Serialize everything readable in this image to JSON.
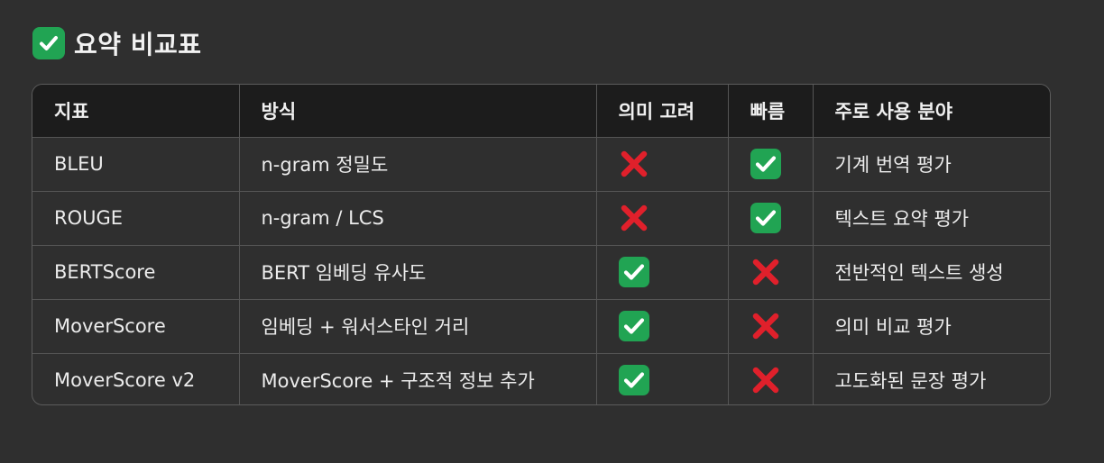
{
  "heading": {
    "icon": "check-mark-button-icon",
    "title": "요약 비교표"
  },
  "colors": {
    "background": "#2f2f2f",
    "header_bg": "#1c1c1c",
    "check_green": "#21a453",
    "cross_red": "#e0202b"
  },
  "table": {
    "headers": [
      "지표",
      "방식",
      "의미 고려",
      "빠름",
      "주로 사용 분야"
    ],
    "rows": [
      {
        "metric": "BLEU",
        "method": "n-gram 정밀도",
        "semantic": "cross-mark-icon",
        "fast": "check-mark-button-icon",
        "usage": "기계 번역 평가"
      },
      {
        "metric": "ROUGE",
        "method": "n-gram / LCS",
        "semantic": "cross-mark-icon",
        "fast": "check-mark-button-icon",
        "usage": "텍스트 요약 평가"
      },
      {
        "metric": "BERTScore",
        "method": "BERT 임베딩 유사도",
        "semantic": "check-mark-button-icon",
        "fast": "cross-mark-icon",
        "usage": "전반적인 텍스트 생성"
      },
      {
        "metric": "MoverScore",
        "method": "임베딩 + 워서스타인 거리",
        "semantic": "check-mark-button-icon",
        "fast": "cross-mark-icon",
        "usage": "의미 비교 평가"
      },
      {
        "metric": "MoverScore v2",
        "method": "MoverScore + 구조적 정보 추가",
        "semantic": "check-mark-button-icon",
        "fast": "cross-mark-icon",
        "usage": "고도화된 문장 평가"
      }
    ]
  }
}
